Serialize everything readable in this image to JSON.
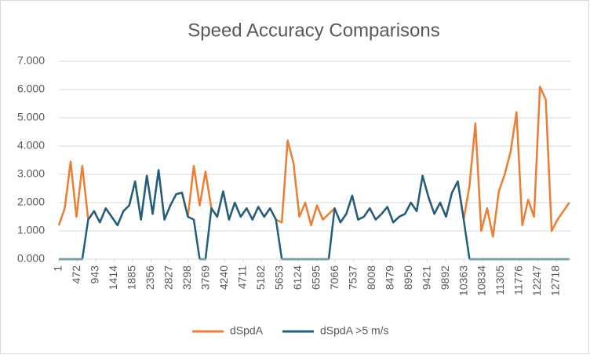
{
  "chart_data": {
    "type": "line",
    "title": "Speed Accuracy Comparisons",
    "x": [
      1,
      151,
      301,
      451,
      601,
      751,
      901,
      1051,
      1201,
      1351,
      1501,
      1651,
      1801,
      1951,
      2101,
      2251,
      2401,
      2551,
      2701,
      2851,
      3001,
      3151,
      3301,
      3451,
      3601,
      3751,
      3901,
      4051,
      4201,
      4351,
      4501,
      4651,
      4801,
      4951,
      5101,
      5251,
      5401,
      5551,
      5701,
      5851,
      6001,
      6151,
      6301,
      6451,
      6601,
      6751,
      6901,
      7051,
      7201,
      7351,
      7501,
      7651,
      7801,
      7951,
      8101,
      8251,
      8401,
      8551,
      8701,
      8851,
      9001,
      9151,
      9301,
      9451,
      9601,
      9751,
      9901,
      10051,
      10201,
      10351,
      10501,
      10651,
      10801,
      10951,
      11101,
      11251,
      11401,
      11551,
      11701,
      11851,
      12001,
      12151,
      12301,
      12451,
      12601,
      12751,
      12901,
      13051
    ],
    "series": [
      {
        "name": "dSpdA",
        "color": "#ed7d31",
        "values": [
          1.2,
          1.8,
          3.45,
          1.5,
          3.3,
          1.4,
          1.7,
          1.3,
          1.8,
          1.5,
          1.2,
          1.7,
          1.9,
          2.75,
          1.4,
          2.95,
          1.6,
          3.15,
          1.4,
          1.9,
          2.3,
          2.35,
          1.5,
          3.3,
          1.9,
          3.1,
          1.8,
          1.5,
          2.4,
          1.4,
          2.0,
          1.5,
          1.8,
          1.4,
          1.85,
          1.5,
          1.8,
          1.4,
          1.3,
          4.2,
          3.4,
          1.5,
          2.0,
          1.2,
          1.9,
          1.4,
          1.6,
          1.8,
          1.3,
          1.6,
          2.25,
          1.4,
          1.5,
          1.8,
          1.4,
          1.6,
          1.85,
          1.3,
          1.5,
          1.6,
          2.0,
          1.7,
          2.95,
          2.2,
          1.6,
          2.0,
          1.5,
          2.35,
          2.75,
          1.4,
          2.6,
          4.8,
          1.0,
          1.8,
          0.8,
          2.4,
          3.0,
          3.8,
          5.2,
          1.2,
          2.1,
          1.5,
          6.1,
          5.65,
          1.0,
          1.4,
          1.7,
          2.0
        ]
      },
      {
        "name": "dSpdA >5 m/s",
        "color": "#1f5f7f",
        "values": [
          0,
          0,
          0,
          0,
          0,
          1.4,
          1.7,
          1.3,
          1.8,
          1.5,
          1.2,
          1.7,
          1.9,
          2.75,
          1.4,
          2.95,
          1.6,
          3.15,
          1.4,
          1.9,
          2.3,
          2.35,
          1.5,
          1.4,
          0,
          0,
          1.8,
          1.5,
          2.4,
          1.4,
          2.0,
          1.5,
          1.8,
          1.4,
          1.85,
          1.5,
          1.8,
          1.4,
          0,
          0,
          0,
          0,
          0,
          0,
          0,
          0,
          0,
          1.8,
          1.3,
          1.6,
          2.25,
          1.4,
          1.5,
          1.8,
          1.4,
          1.6,
          1.85,
          1.3,
          1.5,
          1.6,
          2.0,
          1.7,
          2.95,
          2.2,
          1.6,
          2.0,
          1.5,
          2.35,
          2.75,
          1.4,
          0,
          0,
          0,
          0,
          0,
          0,
          0,
          0,
          0,
          0,
          0,
          0,
          0,
          0,
          0,
          0,
          0,
          0
        ]
      }
    ],
    "xlim": [
      1,
      13100
    ],
    "xticks": [
      1,
      472,
      943,
      1414,
      1885,
      2356,
      2827,
      3298,
      3769,
      4240,
      4711,
      5182,
      5653,
      6124,
      6595,
      7066,
      7537,
      8008,
      8479,
      8950,
      9421,
      9892,
      10363,
      10834,
      11305,
      11776,
      12247,
      12718
    ],
    "ylim": [
      0,
      7
    ],
    "yticks": [
      {
        "value": 0,
        "label": "0.000"
      },
      {
        "value": 1,
        "label": "1.000"
      },
      {
        "value": 2,
        "label": "2.000"
      },
      {
        "value": 3,
        "label": "3.000"
      },
      {
        "value": 4,
        "label": "4.000"
      },
      {
        "value": 5,
        "label": "5.000"
      },
      {
        "value": 6,
        "label": "6.000"
      },
      {
        "value": 7,
        "label": "7.000"
      }
    ],
    "grid": true
  }
}
